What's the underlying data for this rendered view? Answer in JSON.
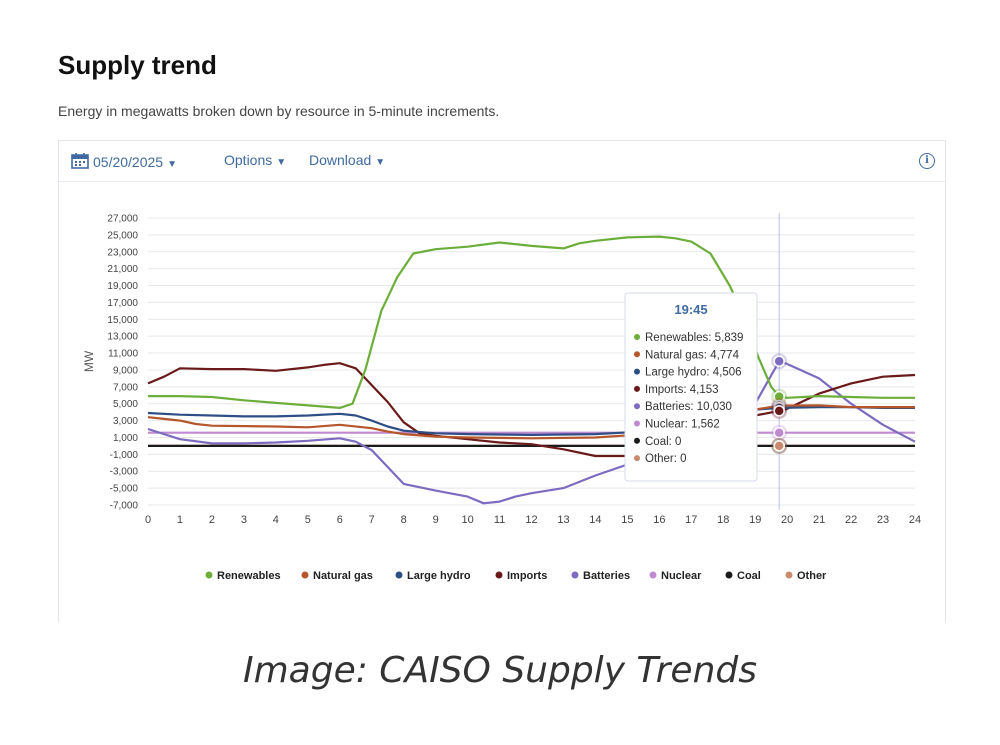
{
  "page": {
    "heading": "Supply trend",
    "subtitle": "Energy in megawatts broken down by resource in 5-minute increments.",
    "caption": "Image: CAISO Supply Trends"
  },
  "toolbar": {
    "date": "05/20/2025",
    "options_label": "Options",
    "download_label": "Download",
    "info_symbol": "i"
  },
  "chart_data": {
    "type": "line",
    "ylabel": "MW",
    "xlabel": "",
    "ylim": [
      -7000,
      27000
    ],
    "yticks": [
      27000,
      25000,
      23000,
      21000,
      19000,
      17000,
      15000,
      13000,
      11000,
      9000,
      7000,
      5000,
      3000,
      1000,
      -1000,
      -3000,
      -5000,
      -7000
    ],
    "ytick_labels": [
      "27,000",
      "25,000",
      "23,000",
      "21,000",
      "19,000",
      "17,000",
      "15,000",
      "13,000",
      "11,000",
      "9,000",
      "7,000",
      "5,000",
      "3,000",
      "1,000",
      "-1,000",
      "-3,000",
      "-5,000",
      "-7,000"
    ],
    "xlim": [
      0,
      24
    ],
    "xticks": [
      0,
      1,
      2,
      3,
      4,
      5,
      6,
      7,
      8,
      9,
      10,
      11,
      12,
      13,
      14,
      15,
      16,
      17,
      18,
      19,
      20,
      21,
      22,
      23,
      24
    ],
    "xtick_labels": [
      "0",
      "1",
      "2",
      "3",
      "4",
      "5",
      "6",
      "7",
      "8",
      "9",
      "10",
      "11",
      "12",
      "13",
      "14",
      "15",
      "16",
      "17",
      "18",
      "19",
      "20",
      "21",
      "22",
      "23",
      "24"
    ],
    "hover_x": 19.75,
    "series": [
      {
        "name": "Renewables",
        "color": "#6cae3a",
        "points": [
          [
            0,
            5900
          ],
          [
            1,
            5900
          ],
          [
            2,
            5800
          ],
          [
            3,
            5400
          ],
          [
            4,
            5100
          ],
          [
            5,
            4800
          ],
          [
            6,
            4500
          ],
          [
            6.4,
            5000
          ],
          [
            6.8,
            9000
          ],
          [
            7.3,
            16000
          ],
          [
            7.8,
            20000
          ],
          [
            8.3,
            22800
          ],
          [
            9,
            23300
          ],
          [
            10,
            23600
          ],
          [
            11,
            24100
          ],
          [
            12,
            23700
          ],
          [
            13,
            23400
          ],
          [
            13.5,
            24000
          ],
          [
            14,
            24300
          ],
          [
            15,
            24700
          ],
          [
            16,
            24800
          ],
          [
            16.5,
            24600
          ],
          [
            17,
            24200
          ],
          [
            17.6,
            22800
          ],
          [
            18.2,
            19000
          ],
          [
            18.7,
            15000
          ],
          [
            19.1,
            10500
          ],
          [
            19.5,
            7000
          ],
          [
            19.75,
            5839
          ],
          [
            20,
            5700
          ],
          [
            21,
            5900
          ],
          [
            22,
            5800
          ],
          [
            23,
            5700
          ],
          [
            24,
            5700
          ]
        ]
      },
      {
        "name": "Natural gas",
        "color": "#b5562b",
        "points": [
          [
            0,
            3400
          ],
          [
            0.5,
            3200
          ],
          [
            1,
            3000
          ],
          [
            1.5,
            2600
          ],
          [
            2,
            2400
          ],
          [
            4,
            2300
          ],
          [
            5,
            2200
          ],
          [
            6,
            2500
          ],
          [
            7,
            2100
          ],
          [
            7.5,
            1700
          ],
          [
            8,
            1400
          ],
          [
            9,
            1100
          ],
          [
            10,
            1000
          ],
          [
            12,
            900
          ],
          [
            14,
            1000
          ],
          [
            16,
            1500
          ],
          [
            17,
            2500
          ],
          [
            18,
            3500
          ],
          [
            19,
            4300
          ],
          [
            19.75,
            4774
          ],
          [
            21,
            4800
          ],
          [
            22,
            4600
          ],
          [
            23,
            4600
          ],
          [
            24,
            4600
          ]
        ]
      },
      {
        "name": "Large hydro",
        "color": "#2d4f85",
        "points": [
          [
            0,
            3900
          ],
          [
            1,
            3700
          ],
          [
            2,
            3600
          ],
          [
            3,
            3500
          ],
          [
            4,
            3500
          ],
          [
            5,
            3600
          ],
          [
            6,
            3800
          ],
          [
            6.5,
            3600
          ],
          [
            7,
            3000
          ],
          [
            7.5,
            2300
          ],
          [
            8,
            1800
          ],
          [
            9,
            1500
          ],
          [
            10,
            1400
          ],
          [
            12,
            1300
          ],
          [
            14,
            1400
          ],
          [
            16,
            1800
          ],
          [
            17,
            2700
          ],
          [
            18,
            3700
          ],
          [
            19,
            4300
          ],
          [
            19.75,
            4506
          ],
          [
            21,
            4600
          ],
          [
            22,
            4600
          ],
          [
            23,
            4500
          ],
          [
            24,
            4500
          ]
        ]
      },
      {
        "name": "Imports",
        "color": "#6b1a1a",
        "points": [
          [
            0,
            7400
          ],
          [
            0.5,
            8200
          ],
          [
            1,
            9200
          ],
          [
            2,
            9100
          ],
          [
            3,
            9100
          ],
          [
            4,
            8900
          ],
          [
            5,
            9300
          ],
          [
            5.5,
            9600
          ],
          [
            6,
            9800
          ],
          [
            6.5,
            9200
          ],
          [
            7,
            7200
          ],
          [
            7.5,
            5200
          ],
          [
            8,
            2800
          ],
          [
            8.5,
            1500
          ],
          [
            9,
            1200
          ],
          [
            10,
            800
          ],
          [
            11,
            400
          ],
          [
            12,
            200
          ],
          [
            13,
            -400
          ],
          [
            14,
            -1200
          ],
          [
            15,
            -1200
          ],
          [
            16,
            -700
          ],
          [
            17,
            200
          ],
          [
            18,
            2200
          ],
          [
            19,
            3600
          ],
          [
            19.75,
            4153
          ],
          [
            20,
            4400
          ],
          [
            21,
            6200
          ],
          [
            22,
            7400
          ],
          [
            23,
            8200
          ],
          [
            24,
            8400
          ]
        ]
      },
      {
        "name": "Batteries",
        "color": "#7d6bc0",
        "points": [
          [
            0,
            2000
          ],
          [
            1,
            800
          ],
          [
            2,
            300
          ],
          [
            3,
            300
          ],
          [
            4,
            400
          ],
          [
            5,
            600
          ],
          [
            6,
            900
          ],
          [
            6.5,
            500
          ],
          [
            7,
            -500
          ],
          [
            7.5,
            -2500
          ],
          [
            8,
            -4500
          ],
          [
            9,
            -5300
          ],
          [
            10,
            -6000
          ],
          [
            10.5,
            -6800
          ],
          [
            11,
            -6600
          ],
          [
            11.5,
            -6000
          ],
          [
            12,
            -5600
          ],
          [
            13,
            -5000
          ],
          [
            14,
            -3500
          ],
          [
            15,
            -2200
          ],
          [
            16,
            -1200
          ],
          [
            17,
            -100
          ],
          [
            18,
            1500
          ],
          [
            19,
            5000
          ],
          [
            19.75,
            10030
          ],
          [
            20,
            9700
          ],
          [
            21,
            8000
          ],
          [
            22,
            5000
          ],
          [
            23,
            2500
          ],
          [
            24,
            500
          ]
        ]
      },
      {
        "name": "Nuclear",
        "color": "#c08ad0",
        "points": [
          [
            0,
            1562
          ],
          [
            24,
            1562
          ]
        ]
      },
      {
        "name": "Coal",
        "color": "#1a1a1a",
        "points": [
          [
            0,
            0
          ],
          [
            24,
            0
          ]
        ]
      },
      {
        "name": "Other",
        "color": "#c98a6e",
        "points": [
          [
            0,
            0
          ],
          [
            24,
            0
          ]
        ]
      }
    ],
    "tooltip": {
      "time": "19:45",
      "entries": [
        {
          "label": "Renewables: 5,839",
          "color": "#6cae3a",
          "value": 5839
        },
        {
          "label": "Natural gas: 4,774",
          "color": "#b5562b",
          "value": 4774
        },
        {
          "label": "Large hydro: 4,506",
          "color": "#2d4f85",
          "value": 4506
        },
        {
          "label": "Imports: 4,153",
          "color": "#6b1a1a",
          "value": 4153
        },
        {
          "label": "Batteries: 10,030",
          "color": "#7d6bc0",
          "value": 10030
        },
        {
          "label": "Nuclear: 1,562",
          "color": "#c08ad0",
          "value": 1562
        },
        {
          "label": "Coal: 0",
          "color": "#1a1a1a",
          "value": 0
        },
        {
          "label": "Other: 0",
          "color": "#c98a6e",
          "value": 0
        }
      ]
    },
    "legend": {
      "position": "bottom",
      "items": [
        {
          "label": "Renewables",
          "color": "#6cae3a"
        },
        {
          "label": "Natural gas",
          "color": "#b5562b"
        },
        {
          "label": "Large hydro",
          "color": "#2d4f85"
        },
        {
          "label": "Imports",
          "color": "#6b1a1a"
        },
        {
          "label": "Batteries",
          "color": "#7d6bc0"
        },
        {
          "label": "Nuclear",
          "color": "#c08ad0"
        },
        {
          "label": "Coal",
          "color": "#1a1a1a"
        },
        {
          "label": "Other",
          "color": "#c98a6e"
        }
      ]
    }
  }
}
